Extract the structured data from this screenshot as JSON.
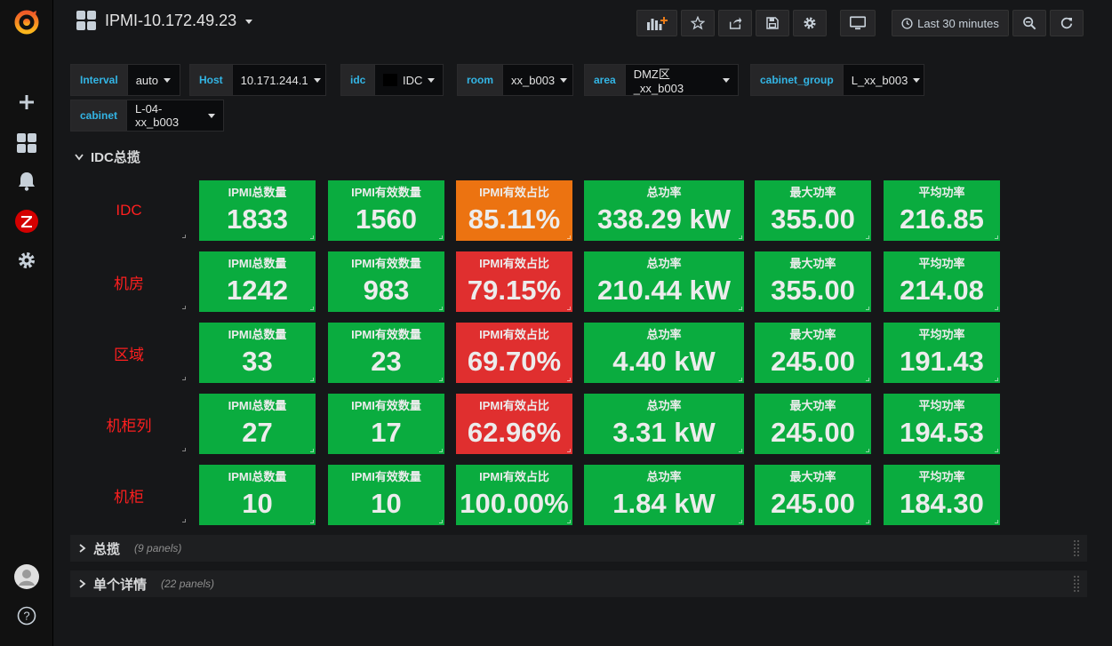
{
  "header": {
    "title": "IPMI-10.172.49.23",
    "time_range": "Last 30 minutes"
  },
  "variables": [
    {
      "label": "Interval",
      "value": "auto"
    },
    {
      "label": "Host",
      "value": "10.171.244.1"
    },
    {
      "label": "idc",
      "value": "IDC"
    },
    {
      "label": "room",
      "value": "xx_b003"
    },
    {
      "label": "area",
      "value": "DMZ区_xx_b003"
    },
    {
      "label": "cabinet_group",
      "value": "L_xx_b003"
    },
    {
      "label": "cabinet",
      "value": "L-04-xx_b003"
    }
  ],
  "main_row": {
    "title": "IDC总揽"
  },
  "rows": [
    {
      "label": "IDC",
      "stats": [
        {
          "title": "IPMI总数量",
          "value": "1833",
          "color": "#0aac3f"
        },
        {
          "title": "IPMI有效数量",
          "value": "1560",
          "color": "#0aac3f"
        },
        {
          "title": "IPMI有效占比",
          "value": "85.11%",
          "color": "#ec7311"
        },
        {
          "title": "总功率",
          "value": "338.29 kW",
          "color": "#0aac3f"
        },
        {
          "title": "最大功率",
          "value": "355.00",
          "color": "#0aac3f"
        },
        {
          "title": "平均功率",
          "value": "216.85",
          "color": "#0aac3f"
        }
      ]
    },
    {
      "label": "机房",
      "stats": [
        {
          "title": "IPMI总数量",
          "value": "1242",
          "color": "#0aac3f"
        },
        {
          "title": "IPMI有效数量",
          "value": "983",
          "color": "#0aac3f"
        },
        {
          "title": "IPMI有效占比",
          "value": "79.15%",
          "color": "#e02f2f"
        },
        {
          "title": "总功率",
          "value": "210.44 kW",
          "color": "#0aac3f"
        },
        {
          "title": "最大功率",
          "value": "355.00",
          "color": "#0aac3f"
        },
        {
          "title": "平均功率",
          "value": "214.08",
          "color": "#0aac3f"
        }
      ]
    },
    {
      "label": "区域",
      "stats": [
        {
          "title": "IPMI总数量",
          "value": "33",
          "color": "#0aac3f"
        },
        {
          "title": "IPMI有效数量",
          "value": "23",
          "color": "#0aac3f"
        },
        {
          "title": "IPMI有效占比",
          "value": "69.70%",
          "color": "#e02f2f"
        },
        {
          "title": "总功率",
          "value": "4.40 kW",
          "color": "#0aac3f"
        },
        {
          "title": "最大功率",
          "value": "245.00",
          "color": "#0aac3f"
        },
        {
          "title": "平均功率",
          "value": "191.43",
          "color": "#0aac3f"
        }
      ]
    },
    {
      "label": "机柜列",
      "stats": [
        {
          "title": "IPMI总数量",
          "value": "27",
          "color": "#0aac3f"
        },
        {
          "title": "IPMI有效数量",
          "value": "17",
          "color": "#0aac3f"
        },
        {
          "title": "IPMI有效占比",
          "value": "62.96%",
          "color": "#e02f2f"
        },
        {
          "title": "总功率",
          "value": "3.31 kW",
          "color": "#0aac3f"
        },
        {
          "title": "最大功率",
          "value": "245.00",
          "color": "#0aac3f"
        },
        {
          "title": "平均功率",
          "value": "194.53",
          "color": "#0aac3f"
        }
      ]
    },
    {
      "label": "机柜",
      "stats": [
        {
          "title": "IPMI总数量",
          "value": "10",
          "color": "#0aac3f"
        },
        {
          "title": "IPMI有效数量",
          "value": "10",
          "color": "#0aac3f"
        },
        {
          "title": "IPMI有效占比",
          "value": "100.00%",
          "color": "#0aac3f"
        },
        {
          "title": "总功率",
          "value": "1.84 kW",
          "color": "#0aac3f"
        },
        {
          "title": "最大功率",
          "value": "245.00",
          "color": "#0aac3f"
        },
        {
          "title": "平均功率",
          "value": "184.30",
          "color": "#0aac3f"
        }
      ]
    }
  ],
  "collapsed_rows": [
    {
      "title": "总揽",
      "count": "(9 panels)"
    },
    {
      "title": "单个详情",
      "count": "(22 panels)"
    }
  ],
  "icons": {
    "logo": "grafana-logo-icon",
    "create": "plus-icon",
    "dashboards": "apps-grid-icon",
    "alerting": "bell-icon",
    "plugin": "zabbix-icon",
    "config": "gear-icon",
    "user": "avatar-icon",
    "help": "question-icon"
  }
}
